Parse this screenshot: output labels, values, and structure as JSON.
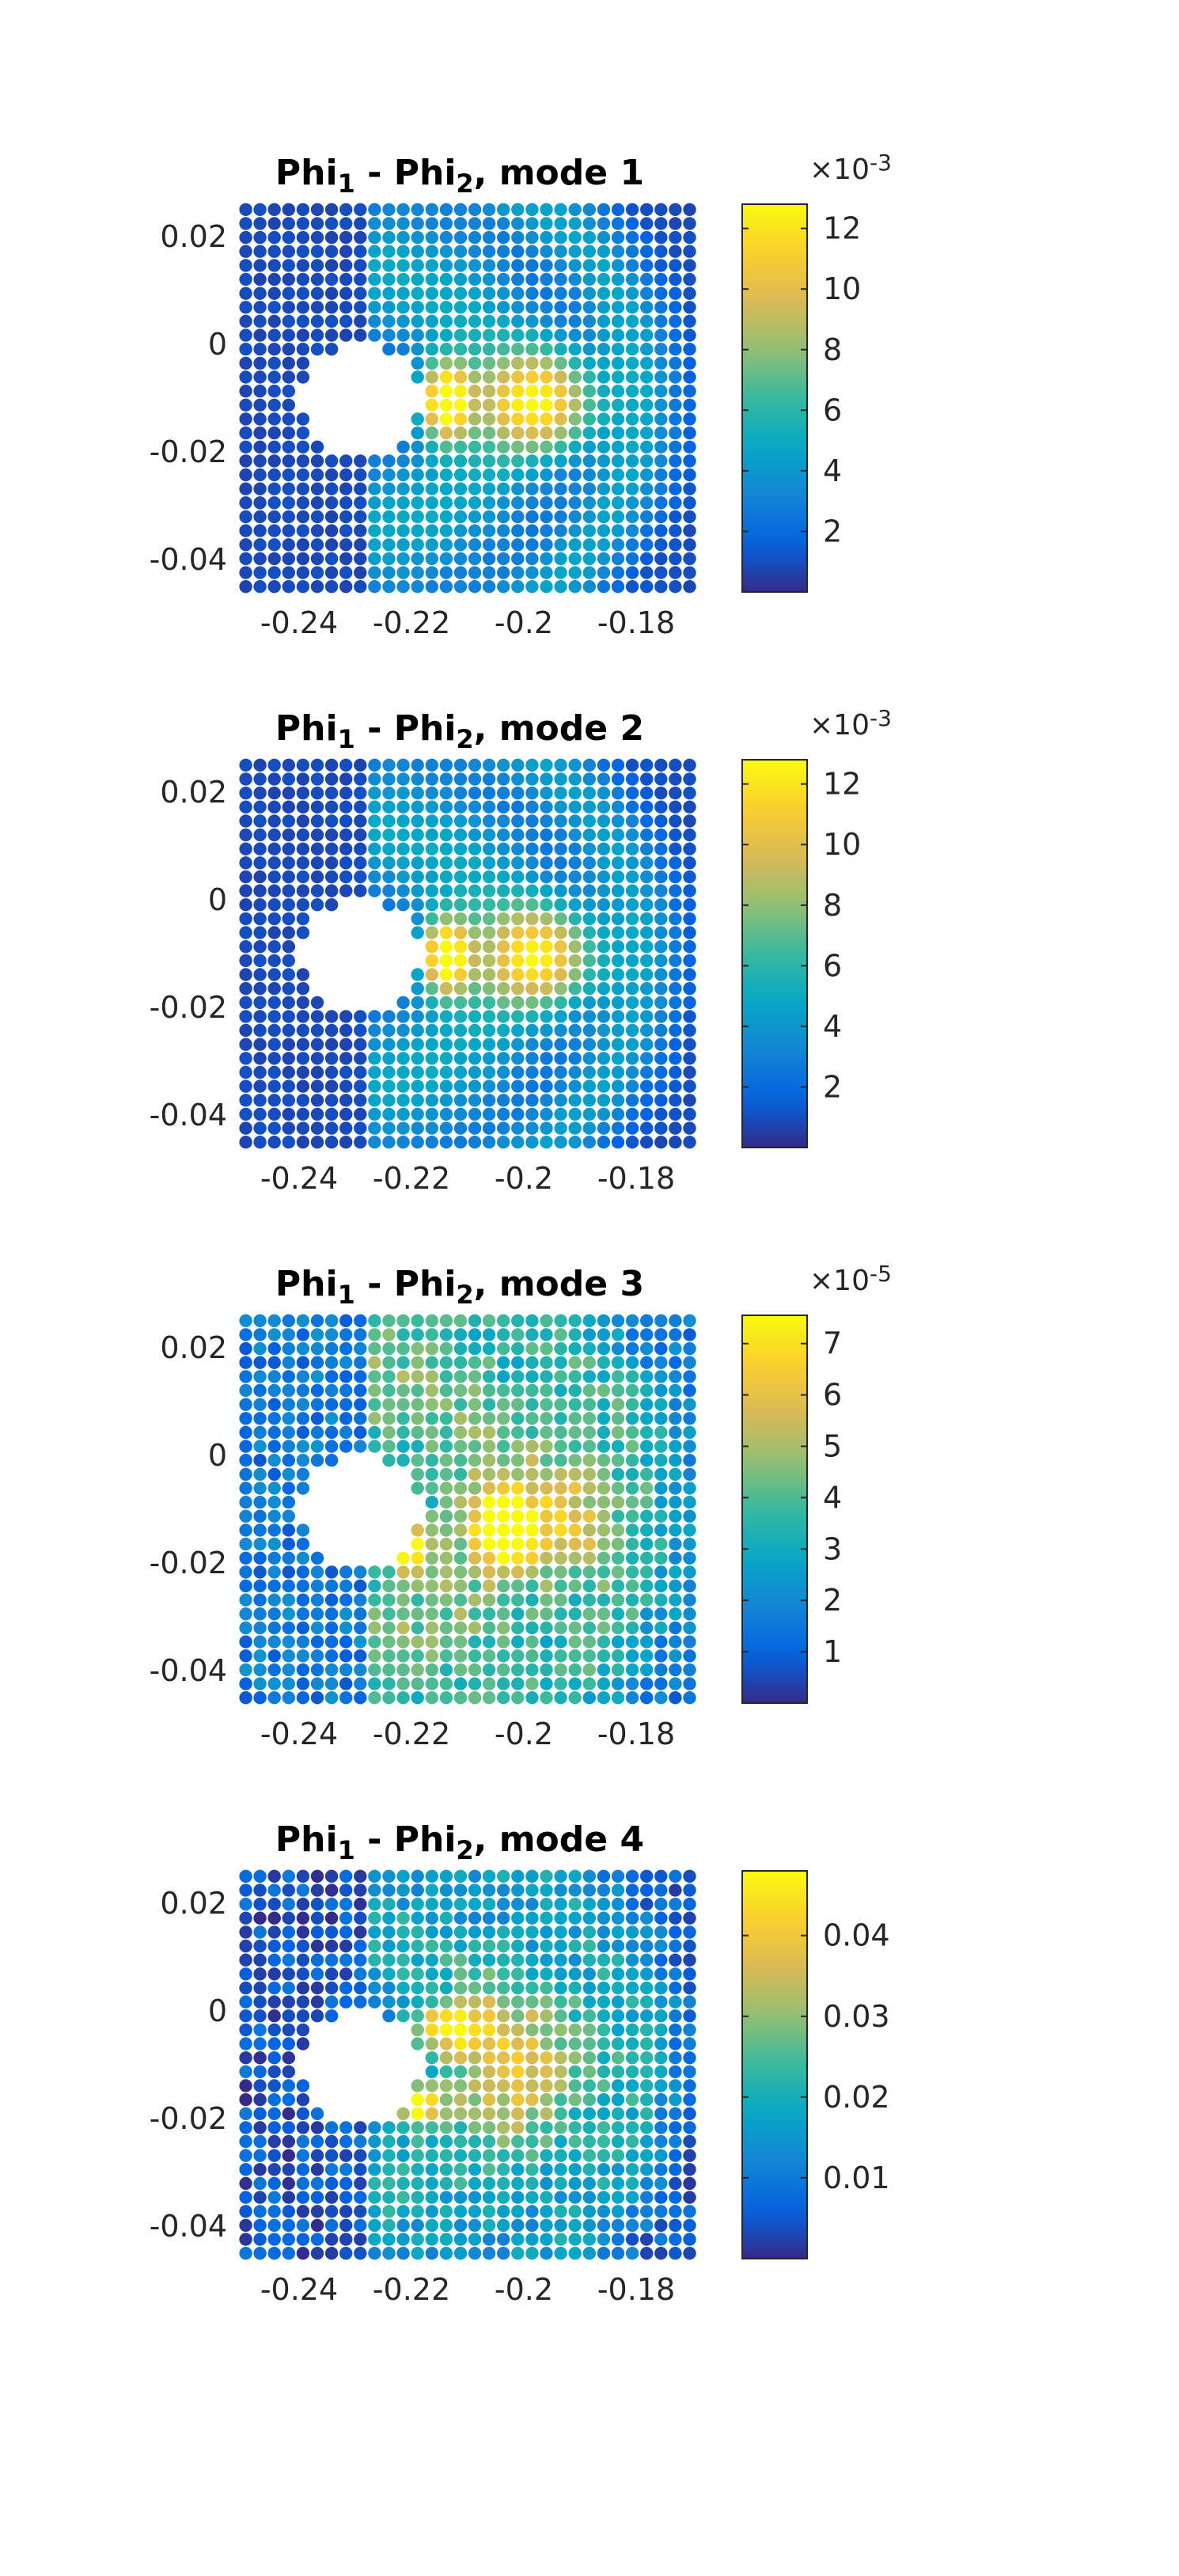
{
  "chart_data": [
    {
      "type": "scatter",
      "title": "Phi",
      "title_parts": [
        {
          "t": "Phi",
          "sub": "1"
        },
        {
          "t": " - Phi",
          "sub": "2"
        },
        {
          "t": ", mode 1",
          "sub": ""
        }
      ],
      "xlabel": "",
      "ylabel": "",
      "xlim": [
        -0.25,
        -0.17
      ],
      "ylim": [
        -0.046,
        0.026
      ],
      "xticks": [
        -0.24,
        -0.22,
        -0.2,
        -0.18
      ],
      "xtick_labels": [
        "-0.24",
        "-0.22",
        "-0.2",
        "-0.18"
      ],
      "yticks": [
        -0.04,
        -0.02,
        0,
        0.02
      ],
      "ytick_labels": [
        "-0.04",
        "-0.02",
        "0",
        "0.02"
      ],
      "grid": false,
      "colorbar": {
        "range": [
          0,
          0.0128
        ],
        "ticks": [
          0.002,
          0.004,
          0.006,
          0.008,
          0.01,
          0.012
        ],
        "tick_labels": [
          "2",
          "4",
          "6",
          "8",
          "10",
          "12"
        ],
        "exponent_base": "×10",
        "exponent": "-3",
        "colormap": "parula"
      },
      "field": {
        "x_range": [
          -0.2495,
          -0.1705
        ],
        "y_range": [
          -0.045,
          0.025
        ],
        "nx": 32,
        "ny": 28,
        "hole": {
          "cx": -0.229,
          "cy": -0.0105,
          "r": 0.0105
        },
        "background": 0.0008,
        "blobs": [
          {
            "x": -0.214,
            "y": -0.0105,
            "sx": 0.003,
            "sy": 0.0048,
            "a": 0.0118
          },
          {
            "x": -0.197,
            "y": -0.0105,
            "sx": 0.007,
            "sy": 0.0065,
            "a": 0.009
          }
        ],
        "rings": [
          {
            "cx": -0.229,
            "cy": -0.0105,
            "r": 0.024,
            "w": 0.01,
            "a": 0.004
          },
          {
            "cx": -0.225,
            "cy": -0.0105,
            "r": 0.046,
            "w": 0.005,
            "a": 0.0036
          }
        ],
        "noise": 0.0004
      }
    },
    {
      "type": "scatter",
      "title": "Phi",
      "title_parts": [
        {
          "t": "Phi",
          "sub": "1"
        },
        {
          "t": " - Phi",
          "sub": "2"
        },
        {
          "t": ", mode 2",
          "sub": ""
        }
      ],
      "xlabel": "",
      "ylabel": "",
      "xlim": [
        -0.25,
        -0.17
      ],
      "ylim": [
        -0.046,
        0.026
      ],
      "xticks": [
        -0.24,
        -0.22,
        -0.2,
        -0.18
      ],
      "xtick_labels": [
        "-0.24",
        "-0.22",
        "-0.2",
        "-0.18"
      ],
      "yticks": [
        -0.04,
        -0.02,
        0,
        0.02
      ],
      "ytick_labels": [
        "-0.04",
        "-0.02",
        "0",
        "0.02"
      ],
      "grid": false,
      "colorbar": {
        "range": [
          0,
          0.0128
        ],
        "ticks": [
          0.002,
          0.004,
          0.006,
          0.008,
          0.01,
          0.012
        ],
        "tick_labels": [
          "2",
          "4",
          "6",
          "8",
          "10",
          "12"
        ],
        "exponent_base": "×10",
        "exponent": "-3",
        "colormap": "parula"
      },
      "field": {
        "x_range": [
          -0.2495,
          -0.1705
        ],
        "y_range": [
          -0.045,
          0.025
        ],
        "nx": 32,
        "ny": 28,
        "hole": {
          "cx": -0.229,
          "cy": -0.0105,
          "r": 0.0105
        },
        "background": 0.0008,
        "blobs": [
          {
            "x": -0.214,
            "y": -0.0105,
            "sx": 0.003,
            "sy": 0.0048,
            "a": 0.0112
          },
          {
            "x": -0.197,
            "y": -0.0105,
            "sx": 0.007,
            "sy": 0.0065,
            "a": 0.0088
          }
        ],
        "rings": [
          {
            "cx": -0.229,
            "cy": -0.0105,
            "r": 0.024,
            "w": 0.01,
            "a": 0.004
          },
          {
            "cx": -0.225,
            "cy": -0.0105,
            "r": 0.046,
            "w": 0.005,
            "a": 0.0034
          }
        ],
        "noise": 0.0004
      }
    },
    {
      "type": "scatter",
      "title": "Phi",
      "title_parts": [
        {
          "t": "Phi",
          "sub": "1"
        },
        {
          "t": " - Phi",
          "sub": "2"
        },
        {
          "t": ", mode 3",
          "sub": ""
        }
      ],
      "xlabel": "",
      "ylabel": "",
      "xlim": [
        -0.25,
        -0.17
      ],
      "ylim": [
        -0.046,
        0.026
      ],
      "xticks": [
        -0.24,
        -0.22,
        -0.2,
        -0.18
      ],
      "xtick_labels": [
        "-0.24",
        "-0.22",
        "-0.2",
        "-0.18"
      ],
      "yticks": [
        -0.04,
        -0.02,
        0,
        0.02
      ],
      "ytick_labels": [
        "-0.04",
        "-0.02",
        "0",
        "0.02"
      ],
      "grid": false,
      "colorbar": {
        "range": [
          0,
          7.55e-05
        ],
        "ticks": [
          1e-05,
          2e-05,
          3e-05,
          4e-05,
          5e-05,
          6e-05,
          7e-05
        ],
        "tick_labels": [
          "1",
          "2",
          "3",
          "4",
          "5",
          "6",
          "7"
        ],
        "exponent_base": "×10",
        "exponent": "-5",
        "colormap": "parula"
      },
      "field": {
        "x_range": [
          -0.2495,
          -0.1705
        ],
        "y_range": [
          -0.045,
          0.025
        ],
        "nx": 32,
        "ny": 28,
        "hole": {
          "cx": -0.229,
          "cy": -0.0105,
          "r": 0.0105
        },
        "background": 1.2e-05,
        "blobs": [
          {
            "x": -0.204,
            "y": -0.0135,
            "sx": 0.0032,
            "sy": 0.004,
            "a": 6.2e-05
          },
          {
            "x": -0.22,
            "y": -0.017,
            "sx": 0.0025,
            "sy": 0.003,
            "a": 5.5e-05
          },
          {
            "x": -0.193,
            "y": -0.012,
            "sx": 0.006,
            "sy": 0.008,
            "a": 3e-05
          }
        ],
        "rings": [
          {
            "cx": -0.229,
            "cy": -0.0105,
            "r": 0.024,
            "w": 0.012,
            "a": 3e-05
          },
          {
            "cx": -0.225,
            "cy": -0.0105,
            "r": 0.046,
            "w": 0.006,
            "a": 1.8e-05
          }
        ],
        "noise": 1.6e-05
      }
    },
    {
      "type": "scatter",
      "title": "Phi",
      "title_parts": [
        {
          "t": "Phi",
          "sub": "1"
        },
        {
          "t": " - Phi",
          "sub": "2"
        },
        {
          "t": ", mode 4",
          "sub": ""
        }
      ],
      "xlabel": "",
      "ylabel": "",
      "xlim": [
        -0.25,
        -0.17
      ],
      "ylim": [
        -0.046,
        0.026
      ],
      "xticks": [
        -0.24,
        -0.22,
        -0.2,
        -0.18
      ],
      "xtick_labels": [
        "-0.24",
        "-0.22",
        "-0.2",
        "-0.18"
      ],
      "yticks": [
        -0.04,
        -0.02,
        0,
        0.02
      ],
      "ytick_labels": [
        "-0.04",
        "-0.02",
        "0",
        "0.02"
      ],
      "grid": false,
      "colorbar": {
        "range": [
          0,
          0.048
        ],
        "ticks": [
          0.01,
          0.02,
          0.03,
          0.04
        ],
        "tick_labels": [
          "0.01",
          "0.02",
          "0.03",
          "0.04"
        ],
        "exponent_base": "",
        "exponent": "",
        "colormap": "parula"
      },
      "field": {
        "x_range": [
          -0.2495,
          -0.1705
        ],
        "y_range": [
          -0.045,
          0.025
        ],
        "nx": 32,
        "ny": 28,
        "hole": {
          "cx": -0.229,
          "cy": -0.0105,
          "r": 0.0105
        },
        "background": 0.003,
        "blobs": [
          {
            "x": -0.219,
            "y": -0.0175,
            "sx": 0.003,
            "sy": 0.0025,
            "a": 0.034
          },
          {
            "x": -0.213,
            "y": -0.003,
            "sx": 0.004,
            "sy": 0.003,
            "a": 0.028
          },
          {
            "x": -0.2,
            "y": -0.01,
            "sx": 0.011,
            "sy": 0.012,
            "a": 0.02
          }
        ],
        "rings": [
          {
            "cx": -0.229,
            "cy": -0.0105,
            "r": 0.024,
            "w": 0.012,
            "a": 0.014
          },
          {
            "cx": -0.225,
            "cy": -0.0105,
            "r": 0.046,
            "w": 0.006,
            "a": 0.01
          }
        ],
        "noise": 0.01
      }
    }
  ]
}
